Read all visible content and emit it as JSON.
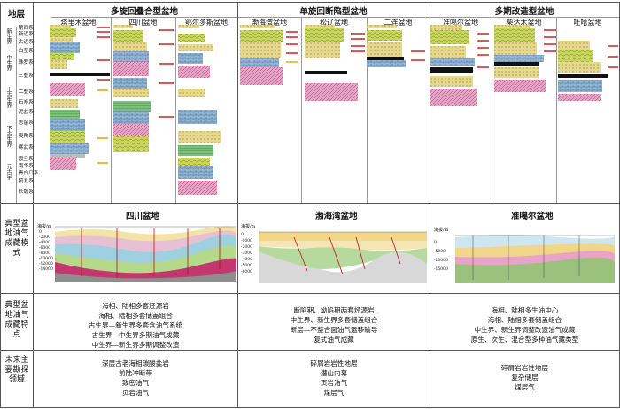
{
  "header": {
    "stratum_label": "地层",
    "groups": [
      {
        "title": "多旋回叠合型盆地",
        "basins": [
          "塔里木盆地",
          "四川盆地",
          "鄂尔多斯盆地"
        ]
      },
      {
        "title": "单旋回断陷型盆地",
        "basins": [
          "渤海湾盆地",
          "松辽盆地",
          "二连盆地"
        ]
      },
      {
        "title": "多期改造型盆地",
        "basins": [
          "准噶尔盆地",
          "柴达木盆地",
          "吐哈盆地"
        ]
      }
    ]
  },
  "eras": [
    "新生界",
    "中生界",
    "上古生界",
    "下古生界",
    "元古宇"
  ],
  "systems": [
    "第四系",
    "新近系",
    "古近系",
    "白垩系",
    "侏罗系",
    "三叠系",
    "二叠系",
    "石炭系",
    "泥盆系",
    "志留系",
    "奥陶系",
    "寒武系",
    "震旦系",
    "南华系",
    "青白口系",
    "蓟县系",
    "长城系"
  ],
  "rows": {
    "model": "典型盆地油气成藏模式",
    "features": "典型盆地油气成藏特点",
    "future": "未来主要勘探领域"
  },
  "sections": {
    "sichuan": {
      "title": "四川盆地",
      "axis_unit": "海拔/m",
      "depth_ticks": [
        "0",
        "-2000",
        "-4000",
        "-6000",
        "-8000",
        "-10000",
        "-12000",
        "-14000"
      ]
    },
    "bohai": {
      "title": "渤海湾盆地",
      "axis_unit": "海拔/m",
      "depth_ticks": [
        "0",
        "-1000",
        "-2000",
        "-3000",
        "-4000",
        "-5000",
        "-6000"
      ]
    },
    "junggar": {
      "title": "准噶尔盆地",
      "axis_unit": "海拔/m",
      "depth_ticks": [
        "0",
        "-5000",
        "-10000",
        "-15000"
      ]
    }
  },
  "features": {
    "multi_cycle": [
      "海相、陆相多套烃源岩",
      "海相、陆相多套储盖组合",
      "古生界—新生界多套含油气系统",
      "古生界—中生界多期油气成藏",
      "中生界—新生界多期调整改造"
    ],
    "rift": [
      "断陷期、坳陷期两套烃源岩",
      "中生界、新生界多套储盖组合",
      "断层—不整合面油气运移输导",
      "复式油气成藏"
    ],
    "modified": [
      "海相、陆相多生油中心",
      "海相、陆相多套储盖组合",
      "中生界、新生界调整改造油气成藏",
      "原生、次生、混合型多种油气藏类型"
    ]
  },
  "future": {
    "multi_cycle": [
      "深层古老海相碳酸盐岩",
      "前陆冲断带",
      "致密油气",
      "页岩油气"
    ],
    "rift": [
      "碎屑岩岩性地层",
      "潜山内幕",
      "页岩油气",
      "煤层气"
    ],
    "modified": [
      "碎屑岩岩性地层",
      "复杂储层",
      "煤层气"
    ]
  }
}
